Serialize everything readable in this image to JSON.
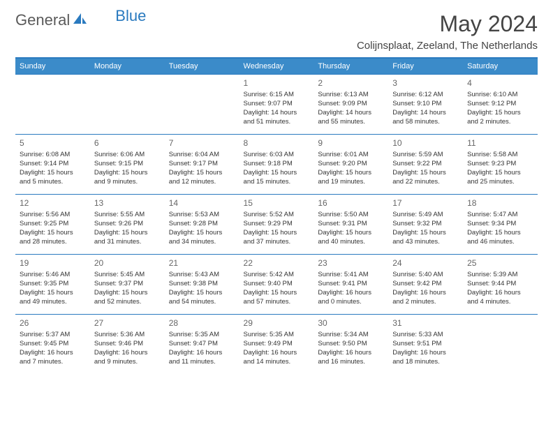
{
  "logo": {
    "text_gray": "General",
    "text_blue": "Blue"
  },
  "title": "May 2024",
  "location": "Colijnsplaat, Zeeland, The Netherlands",
  "colors": {
    "header_bg": "#3b8bc9",
    "header_text": "#ffffff",
    "border": "#2a7abf",
    "body_text": "#333333",
    "daynum": "#666666",
    "logo_gray": "#5a5a5a",
    "logo_blue": "#2a7abf",
    "background": "#ffffff"
  },
  "day_headers": [
    "Sunday",
    "Monday",
    "Tuesday",
    "Wednesday",
    "Thursday",
    "Friday",
    "Saturday"
  ],
  "weeks": [
    [
      null,
      null,
      null,
      {
        "n": "1",
        "sr": "6:15 AM",
        "ss": "9:07 PM",
        "dl": "14 hours and 51 minutes."
      },
      {
        "n": "2",
        "sr": "6:13 AM",
        "ss": "9:09 PM",
        "dl": "14 hours and 55 minutes."
      },
      {
        "n": "3",
        "sr": "6:12 AM",
        "ss": "9:10 PM",
        "dl": "14 hours and 58 minutes."
      },
      {
        "n": "4",
        "sr": "6:10 AM",
        "ss": "9:12 PM",
        "dl": "15 hours and 2 minutes."
      }
    ],
    [
      {
        "n": "5",
        "sr": "6:08 AM",
        "ss": "9:14 PM",
        "dl": "15 hours and 5 minutes."
      },
      {
        "n": "6",
        "sr": "6:06 AM",
        "ss": "9:15 PM",
        "dl": "15 hours and 9 minutes."
      },
      {
        "n": "7",
        "sr": "6:04 AM",
        "ss": "9:17 PM",
        "dl": "15 hours and 12 minutes."
      },
      {
        "n": "8",
        "sr": "6:03 AM",
        "ss": "9:18 PM",
        "dl": "15 hours and 15 minutes."
      },
      {
        "n": "9",
        "sr": "6:01 AM",
        "ss": "9:20 PM",
        "dl": "15 hours and 19 minutes."
      },
      {
        "n": "10",
        "sr": "5:59 AM",
        "ss": "9:22 PM",
        "dl": "15 hours and 22 minutes."
      },
      {
        "n": "11",
        "sr": "5:58 AM",
        "ss": "9:23 PM",
        "dl": "15 hours and 25 minutes."
      }
    ],
    [
      {
        "n": "12",
        "sr": "5:56 AM",
        "ss": "9:25 PM",
        "dl": "15 hours and 28 minutes."
      },
      {
        "n": "13",
        "sr": "5:55 AM",
        "ss": "9:26 PM",
        "dl": "15 hours and 31 minutes."
      },
      {
        "n": "14",
        "sr": "5:53 AM",
        "ss": "9:28 PM",
        "dl": "15 hours and 34 minutes."
      },
      {
        "n": "15",
        "sr": "5:52 AM",
        "ss": "9:29 PM",
        "dl": "15 hours and 37 minutes."
      },
      {
        "n": "16",
        "sr": "5:50 AM",
        "ss": "9:31 PM",
        "dl": "15 hours and 40 minutes."
      },
      {
        "n": "17",
        "sr": "5:49 AM",
        "ss": "9:32 PM",
        "dl": "15 hours and 43 minutes."
      },
      {
        "n": "18",
        "sr": "5:47 AM",
        "ss": "9:34 PM",
        "dl": "15 hours and 46 minutes."
      }
    ],
    [
      {
        "n": "19",
        "sr": "5:46 AM",
        "ss": "9:35 PM",
        "dl": "15 hours and 49 minutes."
      },
      {
        "n": "20",
        "sr": "5:45 AM",
        "ss": "9:37 PM",
        "dl": "15 hours and 52 minutes."
      },
      {
        "n": "21",
        "sr": "5:43 AM",
        "ss": "9:38 PM",
        "dl": "15 hours and 54 minutes."
      },
      {
        "n": "22",
        "sr": "5:42 AM",
        "ss": "9:40 PM",
        "dl": "15 hours and 57 minutes."
      },
      {
        "n": "23",
        "sr": "5:41 AM",
        "ss": "9:41 PM",
        "dl": "16 hours and 0 minutes."
      },
      {
        "n": "24",
        "sr": "5:40 AM",
        "ss": "9:42 PM",
        "dl": "16 hours and 2 minutes."
      },
      {
        "n": "25",
        "sr": "5:39 AM",
        "ss": "9:44 PM",
        "dl": "16 hours and 4 minutes."
      }
    ],
    [
      {
        "n": "26",
        "sr": "5:37 AM",
        "ss": "9:45 PM",
        "dl": "16 hours and 7 minutes."
      },
      {
        "n": "27",
        "sr": "5:36 AM",
        "ss": "9:46 PM",
        "dl": "16 hours and 9 minutes."
      },
      {
        "n": "28",
        "sr": "5:35 AM",
        "ss": "9:47 PM",
        "dl": "16 hours and 11 minutes."
      },
      {
        "n": "29",
        "sr": "5:35 AM",
        "ss": "9:49 PM",
        "dl": "16 hours and 14 minutes."
      },
      {
        "n": "30",
        "sr": "5:34 AM",
        "ss": "9:50 PM",
        "dl": "16 hours and 16 minutes."
      },
      {
        "n": "31",
        "sr": "5:33 AM",
        "ss": "9:51 PM",
        "dl": "16 hours and 18 minutes."
      },
      null
    ]
  ],
  "labels": {
    "sunrise": "Sunrise:",
    "sunset": "Sunset:",
    "daylight": "Daylight:"
  }
}
